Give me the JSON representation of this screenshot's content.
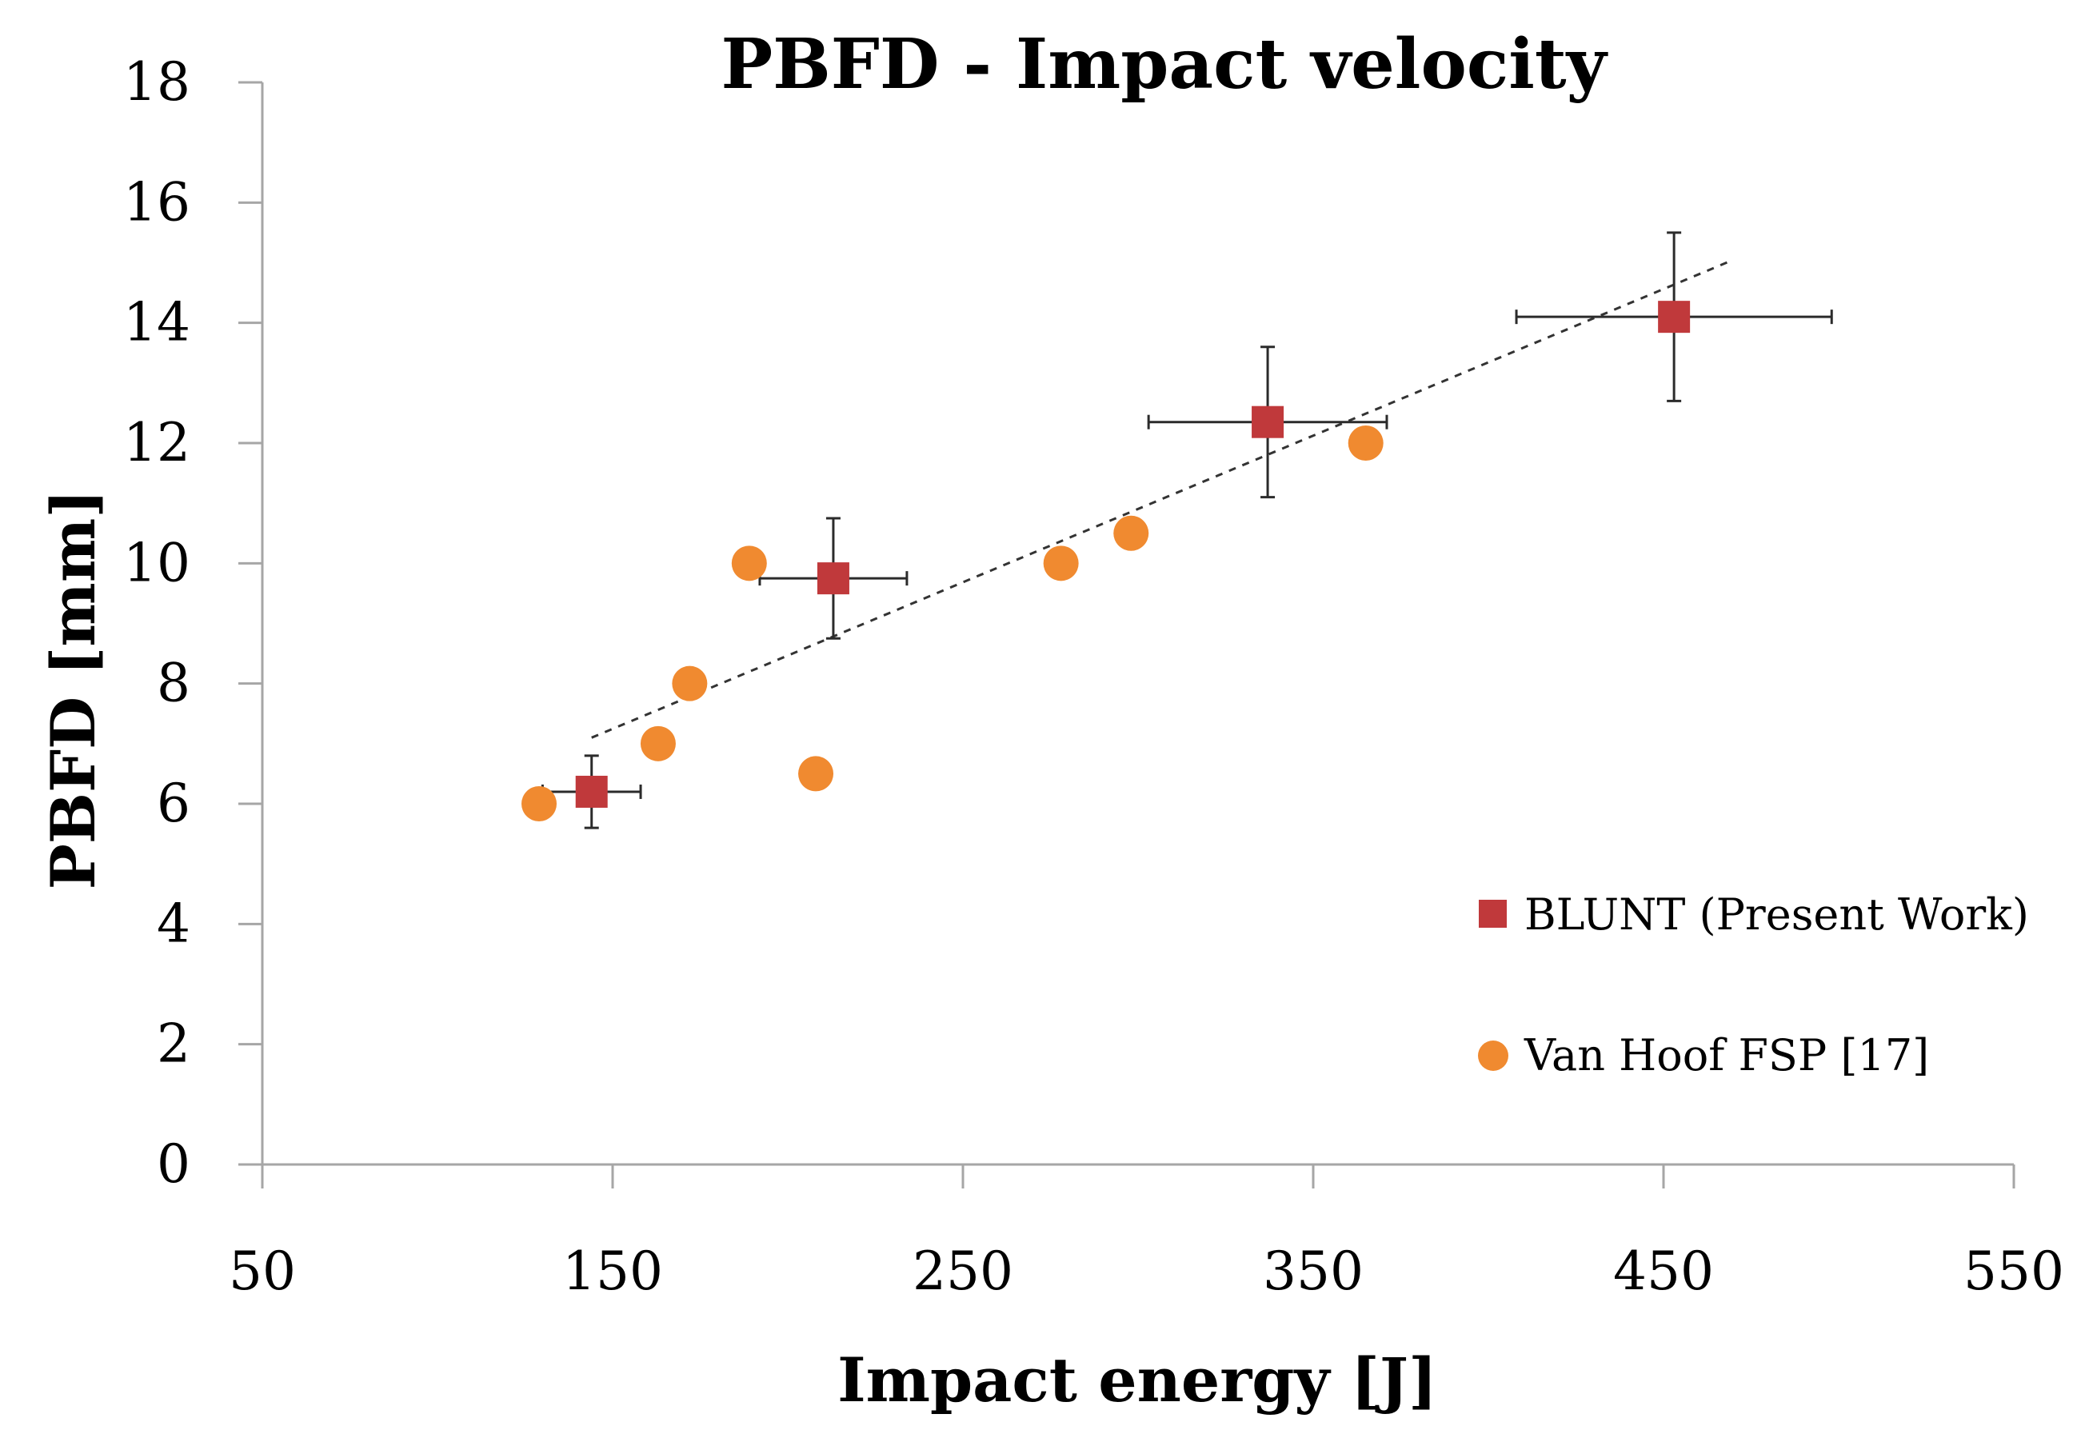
{
  "chart_data": {
    "type": "scatter",
    "title": "PBFD - Impact velocity",
    "xlabel": "Impact energy [J]",
    "ylabel": "PBFD [mm]",
    "xlim": [
      50,
      550
    ],
    "ylim": [
      0,
      18
    ],
    "x_ticks": [
      "50",
      "150",
      "250",
      "350",
      "450",
      "550"
    ],
    "y_ticks": [
      "0",
      "2",
      "4",
      "6",
      "8",
      "10",
      "12",
      "14",
      "16",
      "18"
    ],
    "grid": false,
    "legend_position": "bottom-right",
    "series": [
      {
        "name": "BLUNT (Present Work)",
        "marker": "square",
        "color": "#c0393b",
        "points": [
          {
            "x": 144,
            "y": 6.2,
            "x_err": 14,
            "y_err": 0.6
          },
          {
            "x": 213,
            "y": 9.75,
            "x_err": 21,
            "y_err": 1.0
          },
          {
            "x": 337,
            "y": 12.35,
            "x_err": 34,
            "y_err": 1.25
          },
          {
            "x": 453,
            "y": 14.1,
            "x_err": 45,
            "y_err": 1.4
          }
        ]
      },
      {
        "name": "Van Hoof FSP [17]",
        "marker": "circle",
        "color": "#f08a30",
        "points": [
          {
            "x": 129,
            "y": 6.0
          },
          {
            "x": 163,
            "y": 7.0
          },
          {
            "x": 172,
            "y": 8.0
          },
          {
            "x": 189,
            "y": 10.0
          },
          {
            "x": 208,
            "y": 6.5
          },
          {
            "x": 278,
            "y": 10.0
          },
          {
            "x": 298,
            "y": 10.5
          },
          {
            "x": 365,
            "y": 12.0
          }
        ]
      }
    ],
    "trendline": {
      "style": "dashed",
      "color": "#333333",
      "x": [
        144,
        470
      ],
      "y": [
        7.1,
        15.05
      ]
    }
  }
}
